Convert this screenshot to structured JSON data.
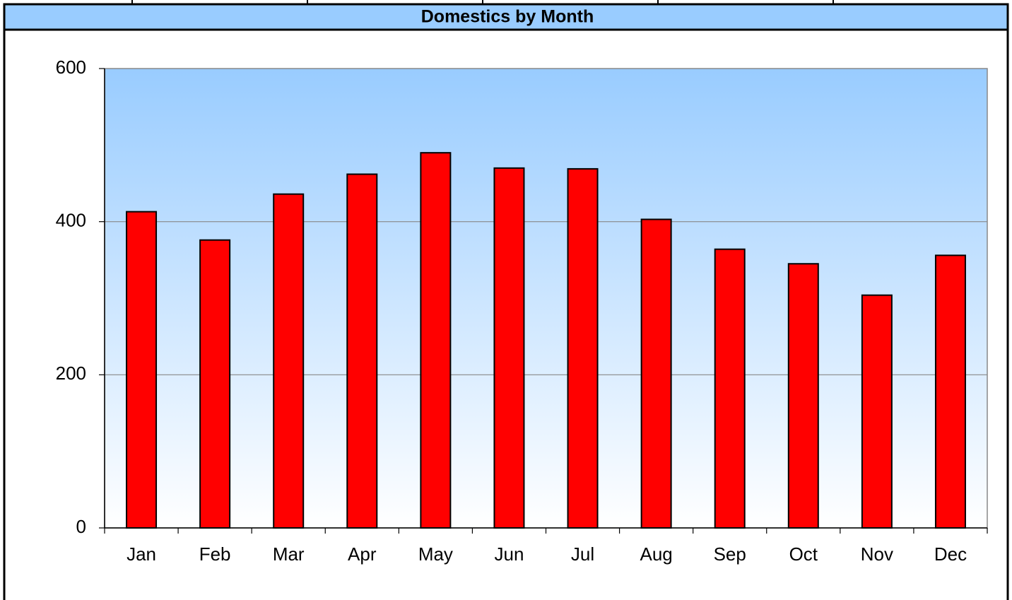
{
  "chart_data": {
    "type": "bar",
    "title": "Domestics by Month",
    "categories": [
      "Jan",
      "Feb",
      "Mar",
      "Apr",
      "May",
      "Jun",
      "Jul",
      "Aug",
      "Sep",
      "Oct",
      "Nov",
      "Dec"
    ],
    "values": [
      413,
      376,
      436,
      462,
      490,
      470,
      469,
      403,
      364,
      345,
      304,
      356
    ],
    "color": "#ff0000",
    "ylim": [
      0,
      600
    ],
    "yticks": [
      0,
      200,
      400,
      600
    ],
    "grid": true
  }
}
